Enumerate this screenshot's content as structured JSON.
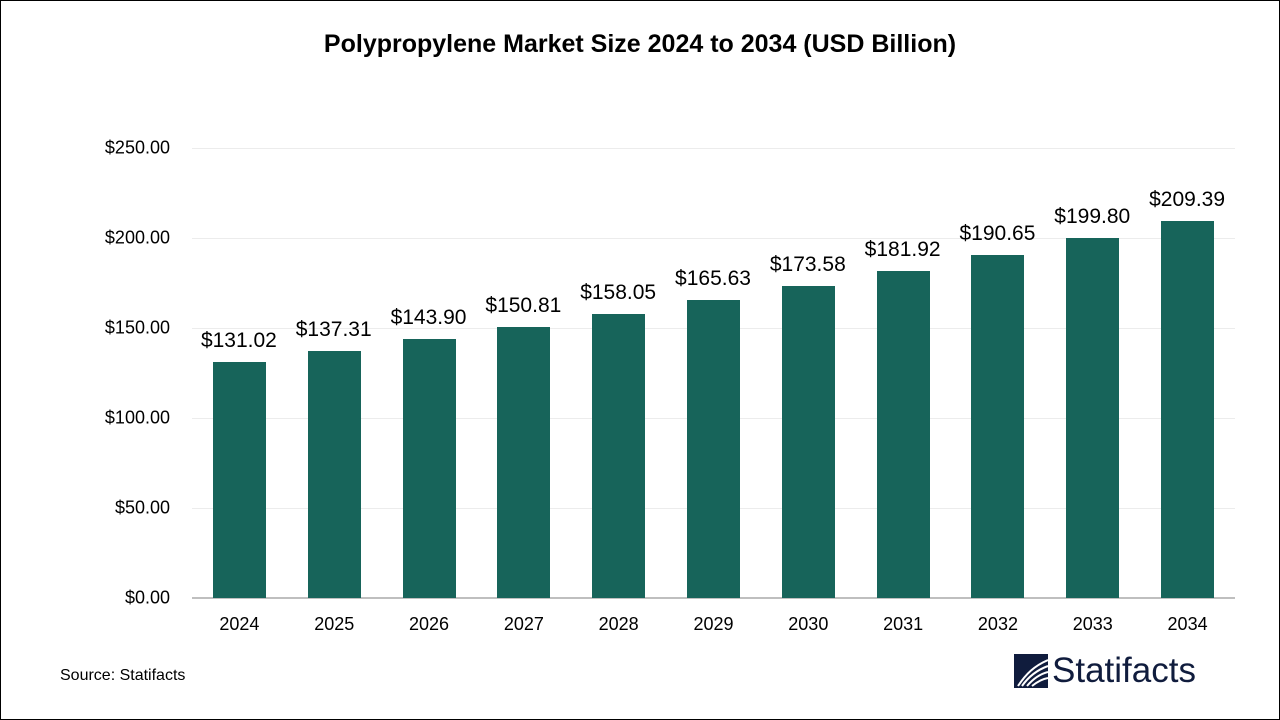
{
  "title": "Polypropylene Market Size 2024 to 2034 (USD Billion)",
  "source": "Source: Statifacts",
  "brand": {
    "name": "Statifacts",
    "color": "#101c3d"
  },
  "colors": {
    "bar": "#17645a",
    "grid": "#ececec",
    "axis": "#bfbfbf"
  },
  "y_ticks": [
    "$0.00",
    "$50.00",
    "$100.00",
    "$150.00",
    "$200.00",
    "$250.00"
  ],
  "chart_data": {
    "type": "bar",
    "title": "Polypropylene Market Size 2024 to 2034 (USD Billion)",
    "xlabel": "",
    "ylabel": "",
    "categories": [
      "2024",
      "2025",
      "2026",
      "2027",
      "2028",
      "2029",
      "2030",
      "2031",
      "2032",
      "2033",
      "2034"
    ],
    "values": [
      131.02,
      137.31,
      143.9,
      150.81,
      158.05,
      165.63,
      173.58,
      181.92,
      190.65,
      199.8,
      209.39
    ],
    "data_labels": [
      "$131.02",
      "$137.31",
      "$143.90",
      "$150.81",
      "$158.05",
      "$165.63",
      "$173.58",
      "$181.92",
      "$190.65",
      "$199.80",
      "$209.39"
    ],
    "ylim": [
      0,
      250
    ],
    "y_tick_step": 50,
    "grid": true,
    "legend": "none"
  }
}
